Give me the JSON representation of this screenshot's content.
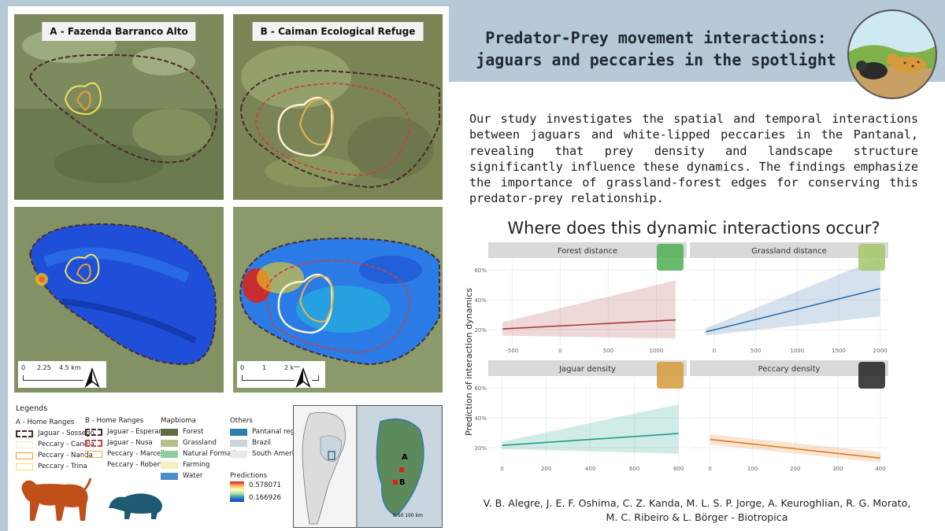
{
  "title": {
    "line1": "Predator-Prey movement interactions:",
    "line2": "jaguars and peccaries in the spotlight"
  },
  "abstract": "Our study investigates the spatial and temporal interactions between jaguars and white-lipped peccaries in the Pantanal, revealing that prey density and landscape structure significantly influence these dynamics. The findings emphasize the importance of grassland-forest edges for conserving this predator-prey relationship.",
  "question": "Where does this dynamic interactions occur?",
  "authors": {
    "line1": "V. B. Alegre, J. E. F. Oshima, C. Z. Kanda, M. L. S. P. Jorge, A. Keuroghlian, R. G. Morato,",
    "line2": "M. C. Ribeiro & L. Börger  - Biotropica"
  },
  "maps": {
    "a_label": "A - Fazenda Barranco Alto",
    "b_label": "B - Caiman Ecological Refuge",
    "scale_a": [
      "0",
      "2.25",
      "4.5 km"
    ],
    "scale_b": [
      "0",
      "1",
      "2 km"
    ]
  },
  "legends": {
    "heading": "Legends",
    "a": {
      "title": "A - Home Ranges",
      "items": [
        "Jaguar - Sossego",
        "Peccary - Canela",
        "Peccary - Nanda",
        "Peccary - Trina"
      ]
    },
    "b": {
      "title": "B - Home Ranges",
      "items": [
        "Jaguar - Esperança",
        "Jaguar - Nusa",
        "Peccary - Marcello",
        "Peccary - Roberta"
      ]
    },
    "mapbioma": {
      "title": "Mapbioma",
      "items": [
        "Forest",
        "Grassland",
        "Natural Formation",
        "Farming",
        "Water"
      ]
    },
    "others": {
      "title": "Others",
      "items": [
        "Pantanal region",
        "Brazil",
        "South America"
      ]
    },
    "predictions": {
      "title": "Predictions",
      "max": "0.578071",
      "min": "0.166926"
    }
  },
  "inset": {
    "label_a": "A",
    "label_b": "B",
    "scale": "0  50 100 km"
  },
  "colors": {
    "forest_line": "#a83a3a",
    "grassland_line": "#2c6fa8",
    "jaguar_line": "#1a9e86",
    "peccary_line": "#e07b1f",
    "header": "#b7c9d6"
  },
  "chart_data": {
    "type": "line",
    "ylabel": "Prediction of interaction dynamics",
    "panels": [
      {
        "title": "Forest distance",
        "x_ticks": [
          "-500",
          "0",
          "500",
          "1000"
        ],
        "xlim": [
          -650,
          1300
        ],
        "y_ticks": [
          "20%",
          "40%",
          "60%"
        ],
        "line": {
          "x": [
            -600,
            1200
          ],
          "y": [
            20.5,
            26.5
          ]
        },
        "ribbon_low": [
          16,
          14
        ],
        "ribbon_high": [
          25,
          53
        ]
      },
      {
        "title": "Grassland distance",
        "x_ticks": [
          "0",
          "500",
          "1000",
          "1500",
          "2000"
        ],
        "xlim": [
          -180,
          2080
        ],
        "y_ticks": [
          "20%",
          "40%",
          "60%"
        ],
        "line": {
          "x": [
            -100,
            2000
          ],
          "y": [
            18.5,
            47.5
          ]
        },
        "ribbon_low": [
          16,
          29
        ],
        "ribbon_high": [
          21,
          68
        ]
      },
      {
        "title": "Jaguar density",
        "x_ticks": [
          "0",
          "200",
          "400",
          "600",
          "800"
        ],
        "xlim": [
          -20,
          830
        ],
        "y_ticks": [
          "20%",
          "40%",
          "60%"
        ],
        "line": {
          "x": [
            0,
            800
          ],
          "y": [
            21.5,
            29.5
          ]
        },
        "ribbon_low": [
          19,
          16
        ],
        "ribbon_high": [
          24,
          49
        ]
      },
      {
        "title": "Peccary density",
        "x_ticks": [
          "0",
          "100",
          "200",
          "300",
          "400"
        ],
        "xlim": [
          -25,
          415
        ],
        "y_ticks": [
          "20%",
          "40%",
          "60%"
        ],
        "line": {
          "x": [
            0,
            400
          ],
          "y": [
            25.5,
            13
          ]
        },
        "ribbon_low": [
          22,
          10
        ],
        "ribbon_high": [
          29,
          17
        ]
      }
    ],
    "ylim": [
      10,
      68
    ]
  }
}
